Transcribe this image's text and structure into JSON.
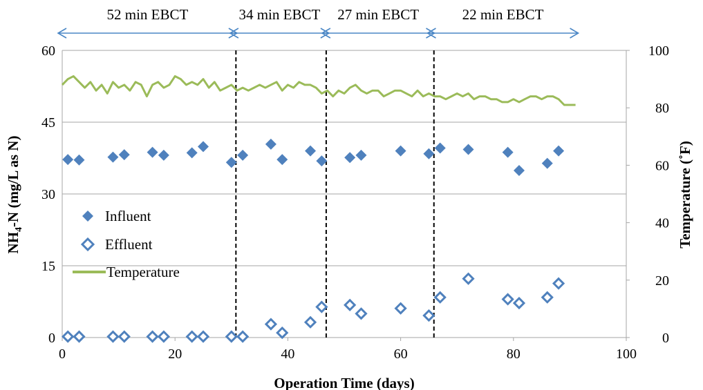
{
  "chart_data": {
    "type": "scatter",
    "title": "",
    "xlabel": "Operation Time (days)",
    "ylabel_left": "NH4-N (mg/L as N)",
    "ylabel_left_parts": [
      "NH",
      "4",
      "-N (mg/L as N)"
    ],
    "ylabel_right": "Temperature (˚F)",
    "xlim": [
      0,
      100
    ],
    "ylim_left": [
      0,
      60
    ],
    "ylim_right": [
      0,
      100
    ],
    "x_ticks": [
      0,
      20,
      40,
      60,
      80,
      100
    ],
    "y_left_ticks": [
      0,
      15,
      30,
      45,
      60
    ],
    "y_right_ticks": [
      0,
      20,
      40,
      60,
      80,
      100
    ],
    "grid": "horizontal",
    "legend_position": "left-center",
    "colors": {
      "influent": "#4f81bd",
      "effluent": "#4f81bd",
      "temperature": "#9bbb59",
      "arrows": "#4a86c5"
    },
    "phases": [
      {
        "label": "52 min EBCT",
        "start": 0,
        "end": 30.5
      },
      {
        "label": "34 min EBCT",
        "start": 30.5,
        "end": 46.8
      },
      {
        "label": "27 min EBCT",
        "start": 46.8,
        "end": 65.5
      },
      {
        "label": "22 min EBCT",
        "start": 65.5,
        "end": 91
      }
    ],
    "phase_dividers": [
      30.8,
      46.8,
      65.9
    ],
    "series": [
      {
        "name": "Influent",
        "axis": "left",
        "marker": "filled-diamond",
        "x": [
          1,
          3,
          9,
          11,
          16,
          18,
          23,
          25,
          30,
          32,
          37,
          39,
          44,
          46,
          51,
          53,
          60,
          65,
          67,
          72,
          79,
          81,
          86,
          88
        ],
        "y": [
          37.2,
          37.1,
          37.7,
          38.2,
          38.7,
          38.1,
          38.6,
          39.9,
          36.6,
          38.1,
          40.4,
          37.2,
          39.0,
          36.9,
          37.6,
          38.1,
          39.0,
          38.4,
          39.6,
          39.3,
          38.7,
          34.9,
          36.4,
          39.0
        ]
      },
      {
        "name": "Effluent",
        "axis": "left",
        "marker": "open-diamond",
        "x": [
          1,
          3,
          9,
          11,
          16,
          18,
          23,
          25,
          30,
          32,
          37,
          39,
          44,
          46,
          51,
          53,
          60,
          65,
          67,
          72,
          79,
          81,
          86,
          88
        ],
        "y": [
          0.2,
          0.2,
          0.2,
          0.2,
          0.2,
          0.2,
          0.2,
          0.2,
          0.2,
          0.2,
          2.8,
          1.0,
          3.2,
          6.4,
          6.8,
          5.0,
          6.1,
          4.6,
          8.4,
          12.3,
          8.0,
          7.2,
          8.4,
          11.3
        ]
      },
      {
        "name": "Temperature",
        "axis": "right",
        "marker": "line",
        "x": [
          0,
          1,
          2,
          3,
          4,
          5,
          6,
          7,
          8,
          9,
          10,
          11,
          12,
          13,
          14,
          15,
          16,
          17,
          18,
          19,
          20,
          21,
          22,
          23,
          24,
          25,
          26,
          27,
          28,
          29,
          30,
          31,
          32,
          33,
          34,
          35,
          36,
          37,
          38,
          39,
          40,
          41,
          42,
          43,
          44,
          45,
          46,
          47,
          48,
          49,
          50,
          51,
          52,
          53,
          54,
          55,
          56,
          57,
          58,
          59,
          60,
          61,
          62,
          63,
          64,
          65,
          66,
          67,
          68,
          69,
          70,
          71,
          72,
          73,
          74,
          75,
          76,
          77,
          78,
          79,
          80,
          81,
          82,
          83,
          84,
          85,
          86,
          87,
          88,
          89,
          90,
          91
        ],
        "y": [
          88,
          90,
          91,
          89,
          87,
          89,
          86,
          88,
          85,
          89,
          87,
          88,
          86,
          89,
          88,
          84,
          88,
          89,
          87,
          88,
          91,
          90,
          88,
          89,
          88,
          90,
          87,
          89,
          86,
          87,
          88,
          86,
          87,
          86,
          87,
          88,
          87,
          88,
          89,
          86,
          88,
          87,
          89,
          88,
          88,
          87,
          85,
          86,
          84,
          86,
          85,
          87,
          88,
          86,
          85,
          86,
          86,
          84,
          85,
          86,
          86,
          85,
          84,
          86,
          84,
          85,
          84,
          84,
          83,
          84,
          85,
          84,
          85,
          83,
          84,
          84,
          83,
          83,
          82,
          82,
          83,
          82,
          83,
          84,
          84,
          83,
          84,
          84,
          83,
          81,
          81,
          81
        ]
      }
    ]
  }
}
